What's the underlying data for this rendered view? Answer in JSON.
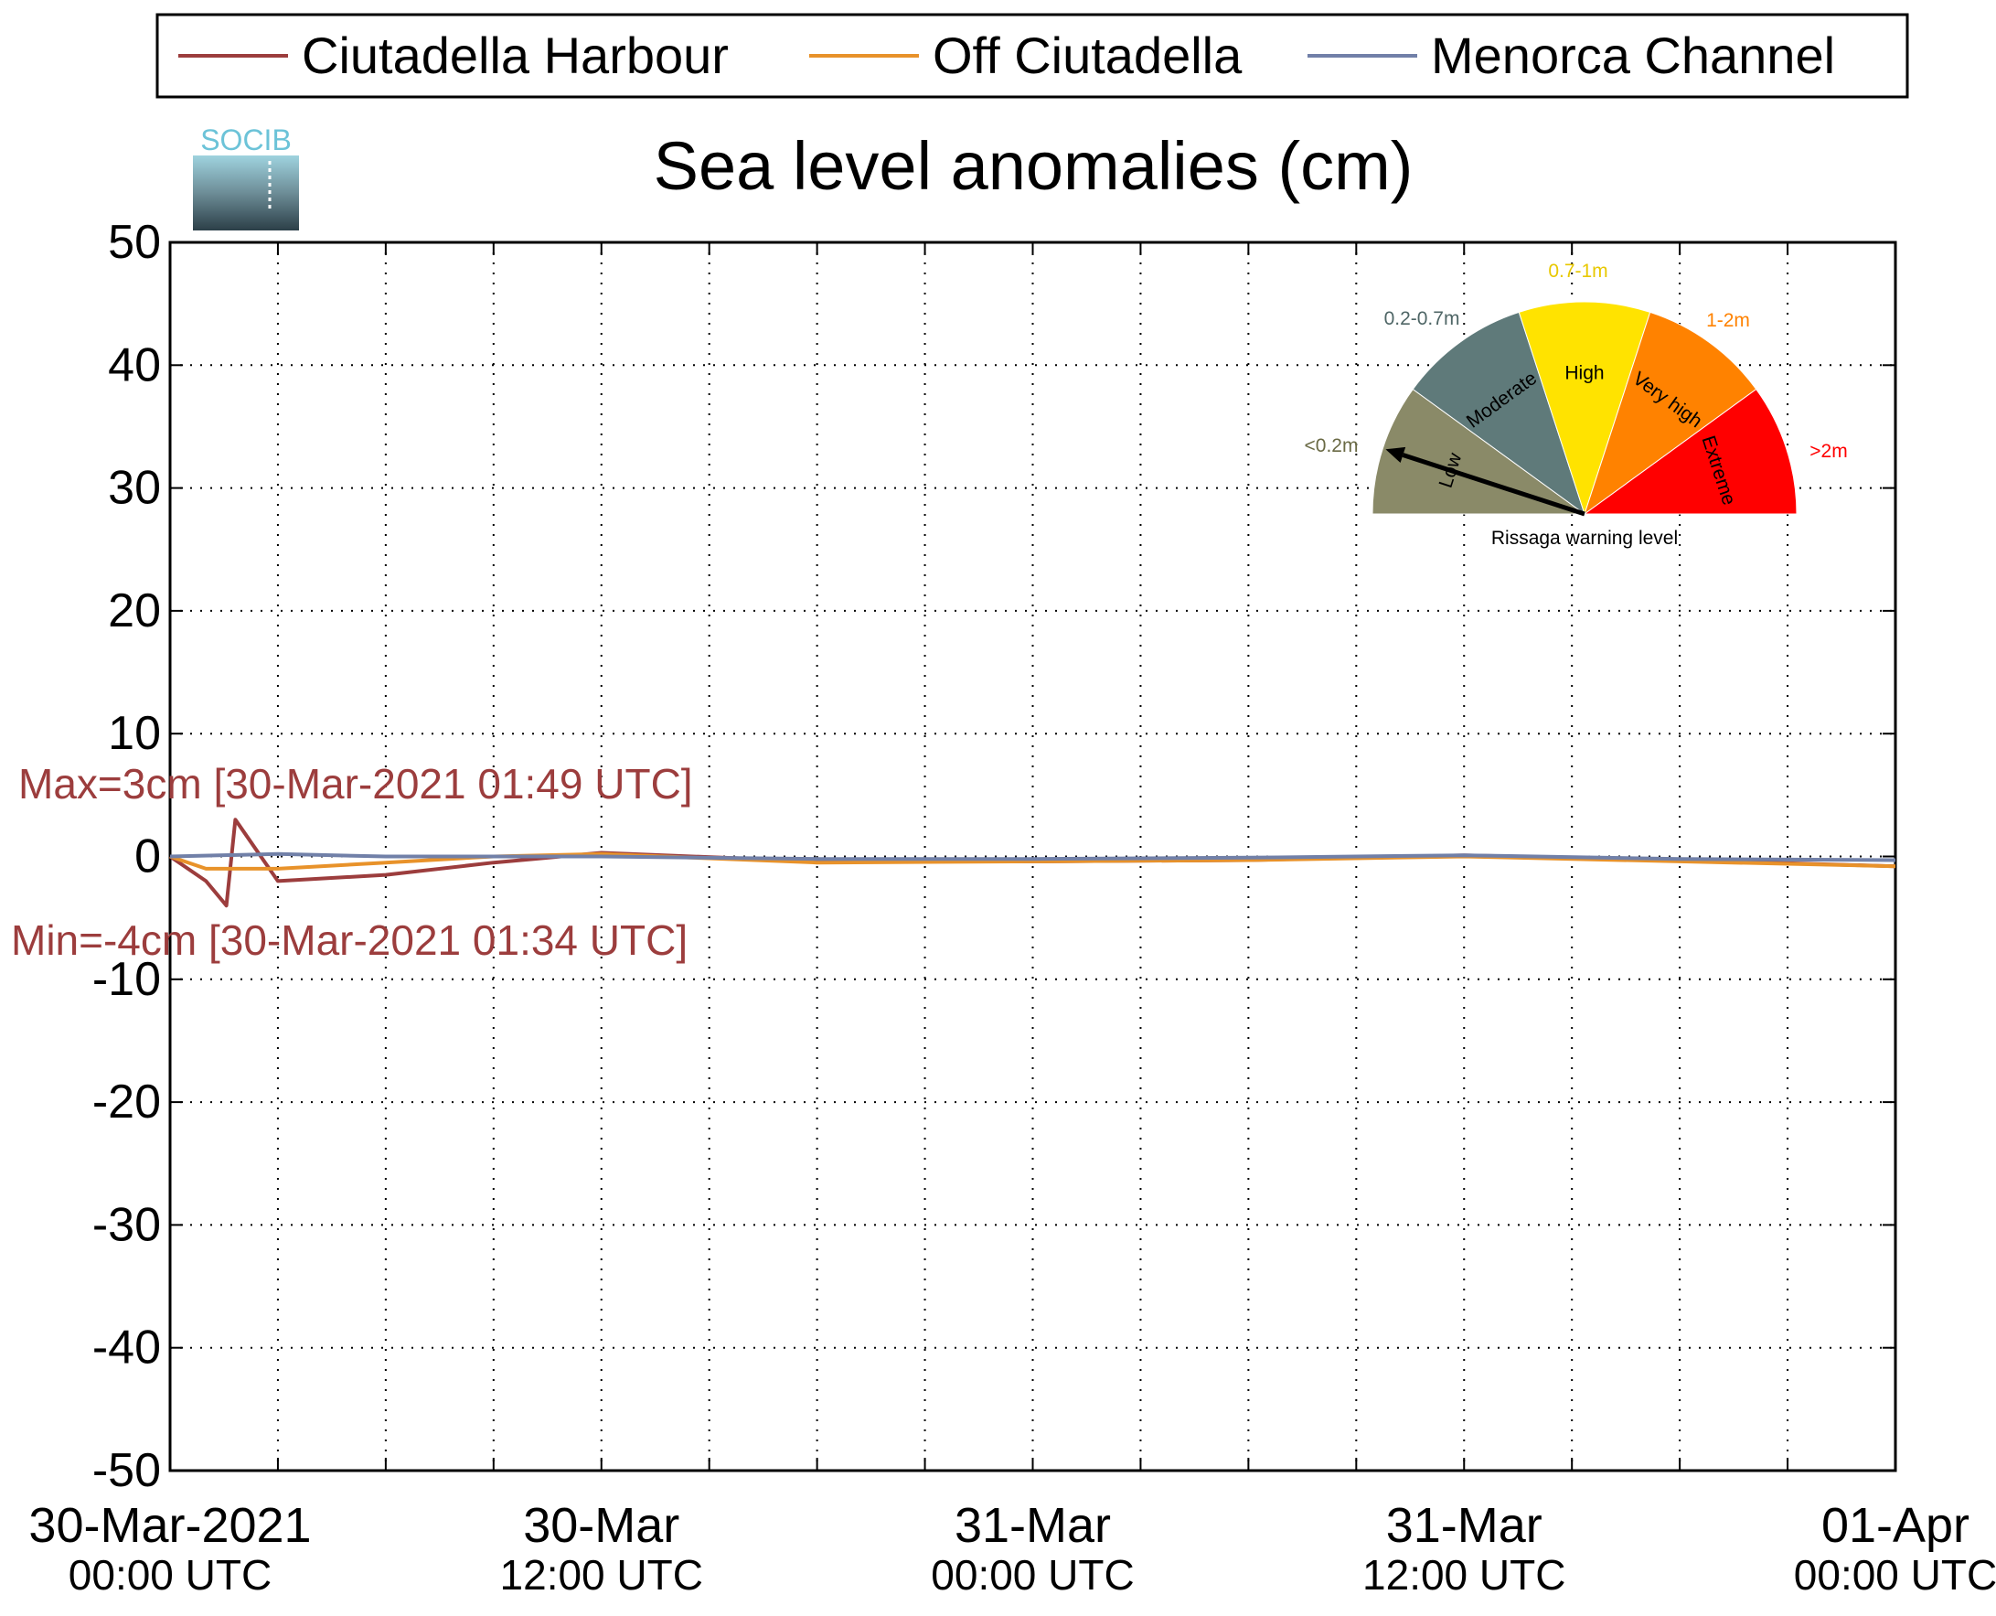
{
  "chart_data": {
    "type": "line",
    "title": "Sea level anomalies (cm)",
    "ylim": [
      -50,
      50
    ],
    "yticks": [
      50,
      40,
      30,
      20,
      10,
      0,
      -10,
      -20,
      -30,
      -40,
      -50
    ],
    "xlim": [
      "2021-03-30T00:00",
      "2021-04-01T00:00"
    ],
    "grid": true,
    "legend_placement": "top",
    "xtick_labels": [
      {
        "line1": "30-Mar-2021",
        "line2": "00:00 UTC"
      },
      {
        "line1": "30-Mar",
        "line2": "12:00 UTC"
      },
      {
        "line1": "31-Mar",
        "line2": "00:00 UTC"
      },
      {
        "line1": "31-Mar",
        "line2": "12:00 UTC"
      },
      {
        "line1": "01-Apr",
        "line2": "00:00 UTC"
      }
    ],
    "annotations": {
      "max": "Max=3cm [30-Mar-2021 01:49 UTC]",
      "min": "Min=-4cm [30-Mar-2021 01:34 UTC]"
    },
    "series": [
      {
        "name": "Ciutadella Harbour",
        "color": "#9c3d3d",
        "x": [
          "2021-03-30T00:00",
          "2021-03-30T01:00",
          "2021-03-30T01:34",
          "2021-03-30T01:49",
          "2021-03-30T03:00",
          "2021-03-30T06:00",
          "2021-03-30T09:00",
          "2021-03-30T12:00",
          "2021-03-30T18:00",
          "2021-03-31T00:00",
          "2021-03-31T06:00",
          "2021-03-31T12:00",
          "2021-03-31T18:00",
          "2021-04-01T00:00"
        ],
        "y": [
          0,
          -2,
          -4,
          3,
          -2,
          -1.5,
          -0.5,
          0.3,
          -0.4,
          -0.4,
          -0.3,
          0.1,
          -0.3,
          -0.8
        ]
      },
      {
        "name": "Off Ciutadella",
        "color": "#e8922a",
        "x": [
          "2021-03-30T00:00",
          "2021-03-30T01:00",
          "2021-03-30T03:00",
          "2021-03-30T06:00",
          "2021-03-30T09:00",
          "2021-03-30T12:00",
          "2021-03-30T18:00",
          "2021-03-31T00:00",
          "2021-03-31T06:00",
          "2021-03-31T12:00",
          "2021-03-31T18:00",
          "2021-04-01T00:00"
        ],
        "y": [
          0,
          -1,
          -1,
          -0.5,
          0,
          0.2,
          -0.5,
          -0.4,
          -0.3,
          0,
          -0.4,
          -0.8
        ]
      },
      {
        "name": "Menorca Channel",
        "color": "#7180a8",
        "x": [
          "2021-03-30T00:00",
          "2021-03-30T03:00",
          "2021-03-30T06:00",
          "2021-03-30T12:00",
          "2021-03-30T18:00",
          "2021-03-31T00:00",
          "2021-03-31T06:00",
          "2021-03-31T12:00",
          "2021-03-31T18:00",
          "2021-04-01T00:00"
        ],
        "y": [
          0,
          0.2,
          0,
          0,
          -0.2,
          -0.2,
          -0.1,
          0.1,
          -0.2,
          -0.3
        ]
      }
    ]
  },
  "logo": {
    "text": "SOCIB"
  },
  "gauge": {
    "caption": "Rissaga warning level",
    "needle_level": "Low",
    "segments": [
      {
        "name": "Low",
        "range": "<0.2m",
        "color": "#8a8a68"
      },
      {
        "name": "Moderate",
        "range": "0.2-0.7m",
        "color": "#5f7a7a"
      },
      {
        "name": "High",
        "range": "0.7-1m",
        "color": "#ffe300"
      },
      {
        "name": "Very high",
        "range": "1-2m",
        "color": "#ff8200"
      },
      {
        "name": "Extreme",
        "range": ">2m",
        "color": "#ff0000"
      }
    ]
  }
}
